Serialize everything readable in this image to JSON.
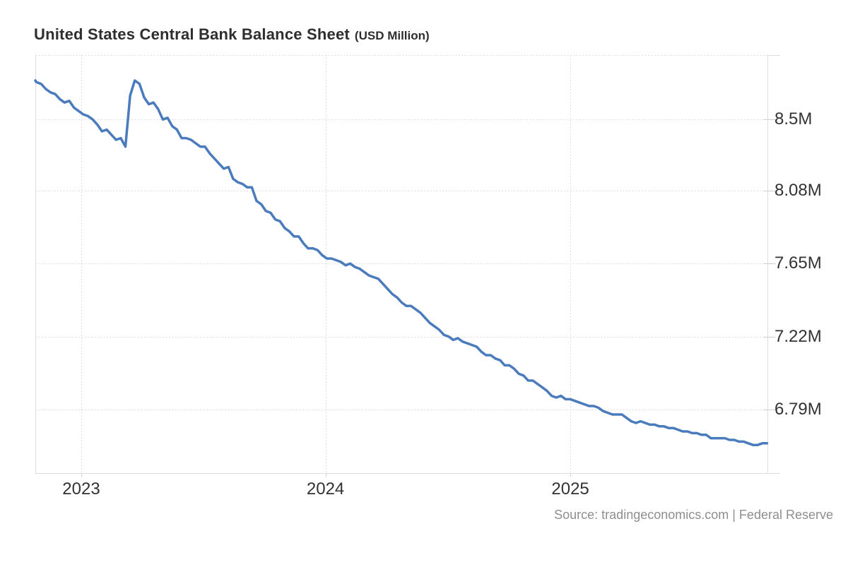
{
  "page": {
    "title_main": "United States Central Bank Balance Sheet",
    "title_unit": "(USD Million)",
    "source_text": "Source: tradingeconomics.com | Federal Reserve"
  },
  "colors": {
    "line": "#4a7bbd",
    "grid": "#dadada",
    "plot_border": "#dedede",
    "axis_tick": "#cccccc",
    "tick_label_text": "#333333",
    "title_text": "#2e2e2e",
    "source_text": "#8e8e8e",
    "background": "#ffffff"
  },
  "chart_data": {
    "type": "line",
    "title": "United States Central Bank Balance Sheet",
    "unit": "USD Million",
    "frequency": "weekly",
    "start_date": "2022-10-19",
    "end_date": "2025-10-22",
    "x_ticks": [
      {
        "label": "2023",
        "year": 2023
      },
      {
        "label": "2024",
        "year": 2024
      },
      {
        "label": "2025",
        "year": 2025
      }
    ],
    "y_ticks": [
      {
        "label": "8.5M",
        "value": 8.5
      },
      {
        "label": "8.08M",
        "value": 8.08
      },
      {
        "label": "7.65M",
        "value": 7.65
      },
      {
        "label": "7.22M",
        "value": 7.22
      },
      {
        "label": "6.79M",
        "value": 6.79
      }
    ],
    "ylim": [
      6.41,
      8.88
    ],
    "grid": "dotted",
    "legend": "none",
    "source": "tradingeconomics.com | Federal Reserve",
    "series": [
      {
        "name": "United States Central Bank Balance Sheet",
        "unit": "USD Million (values in millions, i.e. 8.73 = 8,730,000)",
        "values": [
          8.73,
          8.72,
          8.71,
          8.68,
          8.66,
          8.65,
          8.62,
          8.6,
          8.61,
          8.57,
          8.55,
          8.53,
          8.52,
          8.5,
          8.47,
          8.43,
          8.44,
          8.41,
          8.38,
          8.39,
          8.34,
          8.64,
          8.73,
          8.71,
          8.63,
          8.59,
          8.6,
          8.56,
          8.5,
          8.51,
          8.46,
          8.44,
          8.39,
          8.39,
          8.38,
          8.36,
          8.34,
          8.34,
          8.3,
          8.27,
          8.24,
          8.21,
          8.22,
          8.15,
          8.13,
          8.12,
          8.1,
          8.1,
          8.02,
          8.0,
          7.96,
          7.95,
          7.91,
          7.9,
          7.86,
          7.84,
          7.81,
          7.81,
          7.77,
          7.74,
          7.74,
          7.73,
          7.7,
          7.68,
          7.68,
          7.67,
          7.66,
          7.64,
          7.65,
          7.63,
          7.62,
          7.6,
          7.58,
          7.57,
          7.56,
          7.53,
          7.5,
          7.47,
          7.45,
          7.42,
          7.4,
          7.4,
          7.38,
          7.36,
          7.33,
          7.3,
          7.28,
          7.26,
          7.23,
          7.22,
          7.2,
          7.21,
          7.19,
          7.18,
          7.17,
          7.16,
          7.13,
          7.11,
          7.11,
          7.09,
          7.08,
          7.05,
          7.05,
          7.03,
          7.0,
          6.99,
          6.96,
          6.96,
          6.94,
          6.92,
          6.9,
          6.87,
          6.86,
          6.87,
          6.85,
          6.85,
          6.84,
          6.83,
          6.82,
          6.81,
          6.81,
          6.8,
          6.78,
          6.77,
          6.76,
          6.76,
          6.76,
          6.74,
          6.72,
          6.71,
          6.72,
          6.71,
          6.7,
          6.7,
          6.69,
          6.69,
          6.68,
          6.68,
          6.67,
          6.66,
          6.66,
          6.65,
          6.65,
          6.64,
          6.64,
          6.62,
          6.62,
          6.62,
          6.62,
          6.61,
          6.61,
          6.6,
          6.6,
          6.59,
          6.58,
          6.58,
          6.59,
          6.59
        ]
      }
    ]
  }
}
